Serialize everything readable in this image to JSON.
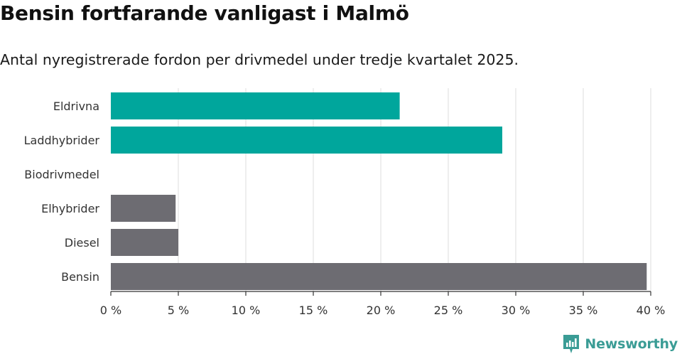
{
  "colors": {
    "highlight": "#00a69c",
    "muted": "#6d6c72",
    "grid": "#dddddd",
    "axis": "#333333",
    "brand": "#3a9c95"
  },
  "brand": {
    "name": "Newsworthy",
    "icon": "newsworthy-logo-icon"
  },
  "chart_data": {
    "type": "bar",
    "orientation": "horizontal",
    "title": "Bensin fortfarande vanligast i Malmö",
    "subtitle": "Antal nyregistrerade fordon per drivmedel under tredje kvartalet 2025.",
    "xlabel": "",
    "ylabel": "",
    "xlim": [
      0,
      40
    ],
    "grid": true,
    "x_tick_values": [
      0,
      5,
      10,
      15,
      20,
      25,
      30,
      35,
      40
    ],
    "x_tick_labels": [
      "0 %",
      "5 %",
      "10 %",
      "15 %",
      "20 %",
      "25 %",
      "30 %",
      "35 %",
      "40 %"
    ],
    "categories": [
      "Eldrivna",
      "Laddhybrider",
      "Biodrivmedel",
      "Elhybrider",
      "Diesel",
      "Bensin"
    ],
    "values": [
      21.4,
      29.0,
      0,
      4.8,
      5.0,
      39.7
    ],
    "bar_colors": [
      "highlight",
      "highlight",
      "highlight",
      "muted",
      "muted",
      "muted"
    ]
  }
}
